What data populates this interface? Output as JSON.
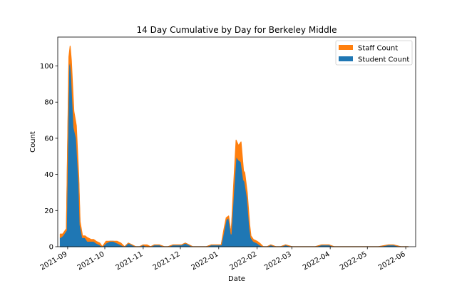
{
  "chart_data": {
    "type": "area",
    "stacked": true,
    "title": "14 Day Cumulative by Day for Berkeley Middle",
    "xlabel": "Date",
    "ylabel": "Count",
    "xlim": [
      "2021-08-24",
      "2022-06-09"
    ],
    "ylim": [
      0,
      116
    ],
    "x_tick_labels": [
      "2021-09",
      "2021-10",
      "2021-11",
      "2021-12",
      "2022-01",
      "2022-02",
      "2022-03",
      "2022-04",
      "2022-05",
      "2022-06"
    ],
    "y_ticks": [
      0,
      20,
      40,
      60,
      80,
      100
    ],
    "grid": false,
    "legend_position": "top-right",
    "x": [
      "2021-08-26",
      "2021-08-28",
      "2021-08-31",
      "2021-09-02",
      "2021-09-03",
      "2021-09-04",
      "2021-09-06",
      "2021-09-08",
      "2021-09-10",
      "2021-09-11",
      "2021-09-13",
      "2021-09-15",
      "2021-09-17",
      "2021-09-20",
      "2021-09-22",
      "2021-09-24",
      "2021-09-27",
      "2021-09-29",
      "2021-10-02",
      "2021-10-05",
      "2021-10-08",
      "2021-10-11",
      "2021-10-14",
      "2021-10-17",
      "2021-10-20",
      "2021-10-23",
      "2021-10-26",
      "2021-10-29",
      "2021-11-01",
      "2021-11-04",
      "2021-11-07",
      "2021-11-10",
      "2021-11-14",
      "2021-11-18",
      "2021-11-21",
      "2021-11-25",
      "2021-11-28",
      "2021-12-02",
      "2021-12-05",
      "2021-12-08",
      "2021-12-11",
      "2021-12-14",
      "2021-12-18",
      "2021-12-22",
      "2021-12-26",
      "2021-12-30",
      "2022-01-03",
      "2022-01-05",
      "2022-01-07",
      "2022-01-09",
      "2022-01-11",
      "2022-01-13",
      "2022-01-15",
      "2022-01-17",
      "2022-01-19",
      "2022-01-21",
      "2022-01-22",
      "2022-01-24",
      "2022-01-26",
      "2022-01-27",
      "2022-01-29",
      "2022-02-01",
      "2022-02-03",
      "2022-02-06",
      "2022-02-09",
      "2022-02-12",
      "2022-02-16",
      "2022-02-20",
      "2022-02-24",
      "2022-03-01",
      "2022-03-05",
      "2022-03-10",
      "2022-03-15",
      "2022-03-20",
      "2022-03-25",
      "2022-03-31",
      "2022-04-04",
      "2022-04-08",
      "2022-04-12",
      "2022-04-20",
      "2022-04-30",
      "2022-05-10",
      "2022-05-18",
      "2022-05-22",
      "2022-05-28",
      "2022-06-03"
    ],
    "series": [
      {
        "name": "Student Count",
        "color": "#1f77b4",
        "values": [
          5,
          6,
          9,
          100,
          103,
          95,
          66,
          60,
          35,
          12,
          5,
          5,
          3,
          3,
          3,
          2,
          1,
          0,
          2,
          3,
          3,
          2,
          1,
          0,
          2,
          1,
          0,
          0,
          1,
          0,
          0,
          1,
          1,
          0,
          0,
          1,
          1,
          1,
          2,
          1,
          0,
          0,
          0,
          0,
          1,
          1,
          1,
          8,
          15,
          16,
          7,
          30,
          50,
          48,
          47,
          37,
          36,
          27,
          10,
          5,
          3,
          2,
          1,
          0,
          0,
          1,
          0,
          0,
          1,
          0,
          0,
          0,
          0,
          0,
          1,
          1,
          0,
          0,
          0,
          0,
          0,
          0,
          1,
          1,
          0,
          0
        ]
      },
      {
        "name": "Staff Count",
        "color": "#ff7f0e",
        "values": [
          2,
          1,
          1,
          5,
          8,
          8,
          9,
          7,
          3,
          2,
          1,
          1,
          2,
          1,
          1,
          1,
          1,
          0,
          1,
          0,
          0,
          1,
          1,
          0,
          0,
          0,
          0,
          0,
          0,
          1,
          0,
          0,
          0,
          0,
          0,
          0,
          0,
          0,
          0,
          0,
          0,
          0,
          0,
          0,
          0,
          0,
          0,
          1,
          1,
          1,
          0,
          4,
          9,
          8,
          11,
          5,
          5,
          3,
          2,
          1,
          1,
          1,
          1,
          0,
          0,
          0,
          0,
          0,
          0,
          0,
          0,
          0,
          0,
          0,
          0,
          0,
          0,
          0,
          0,
          0,
          0,
          0,
          0,
          0,
          0,
          0
        ]
      }
    ]
  }
}
